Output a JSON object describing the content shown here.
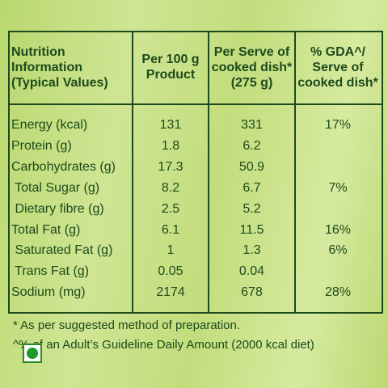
{
  "table": {
    "header": [
      [
        "Nutrition",
        "Information",
        "(Typical Values)"
      ],
      [
        "Per 100 g",
        "Product"
      ],
      [
        "Per Serve of",
        "cooked dish*",
        "(275 g)"
      ],
      [
        "% GDA^/",
        "Serve of",
        "cooked dish*"
      ]
    ],
    "rows": [
      [
        "Energy (kcal)",
        "131",
        "331",
        "17%"
      ],
      [
        "Protein (g)",
        "1.8",
        "6.2"
      ],
      [
        "Carbohydrates (g)",
        "17.3",
        "50.9"
      ],
      [
        " Total Sugar (g)",
        "8.2",
        "6.7",
        "7%"
      ],
      [
        " Dietary fibre (g)",
        "2.5",
        "5.2"
      ],
      [
        "Total Fat (g)",
        "6.1",
        "11.5",
        "16%"
      ],
      [
        " Saturated Fat (g)",
        "1",
        "1.3",
        "6%"
      ],
      [
        " Trans Fat (g)",
        "0.05",
        "0.04"
      ],
      [
        "Sodium (mg)",
        "2174",
        "678",
        "28%"
      ]
    ]
  },
  "footnotes": [
    "* As per suggested method of preparation.",
    "^% of an Adult’s Guideline Daily Amount (2000 kcal diet)"
  ]
}
